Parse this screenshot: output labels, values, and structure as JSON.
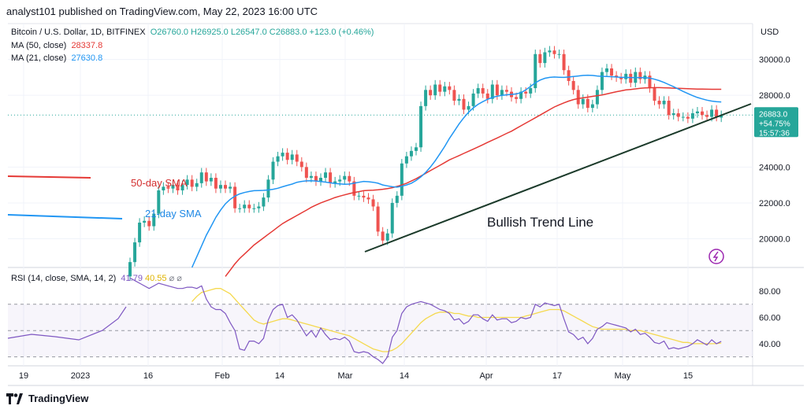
{
  "header": {
    "text": "analyst101 published on TradingView.com, May 22, 2023 16:00 UTC"
  },
  "legend": {
    "symbol": "Bitcoin / U.S. Dollar, 1D, BITFINEX",
    "ohlc": "O26760.0  H26925.0  L26547.0  C26883.0  +123.0 (+0.46%)",
    "ma50_label": "MA (50, close)",
    "ma50_value": "28337.8",
    "ma21_label": "MA (21, close)",
    "ma21_value": "27630.8"
  },
  "rsi_legend": {
    "label": "RSI (14, close, SMA, 14, 2)",
    "value1": "41.79",
    "value2": "40.55"
  },
  "footer": {
    "brand": "TradingView"
  },
  "colors": {
    "up": "#26a69a",
    "down": "#ef5350",
    "ma50": "#e53935",
    "ma21": "#2196f3",
    "rsi": "#7e57c2",
    "rsi_sma": "#f5d94e",
    "trend": "#1b3a2a",
    "price_tag": "#26a69a"
  },
  "chart_data": {
    "type": "candlestick",
    "title": "Bitcoin / U.S. Dollar, 1D, BITFINEX",
    "currency": "USD",
    "price_axis": {
      "label": "USD",
      "ticks": [
        20000,
        22000,
        24000,
        26000,
        28000,
        30000
      ],
      "tick_labels": [
        "20000.0",
        "22000.0",
        "24000.0",
        "26000.0",
        "28000.0",
        "30000.0"
      ],
      "range": [
        18400,
        32000
      ]
    },
    "time_axis": {
      "labels": [
        "19",
        "2023",
        "16",
        "Feb",
        "14",
        "Mar",
        "14",
        "Apr",
        "17",
        "May",
        "15"
      ]
    },
    "last_price": {
      "value": "26883.0",
      "change": "+54.75%",
      "countdown": "15:57:36"
    },
    "annotations": {
      "sma50": "50-day SMA",
      "sma21": "21-day SMA",
      "trend": "Bullish Trend Line"
    },
    "closes": [
      18700,
      19800,
      20900,
      21000,
      20700,
      21400,
      22700,
      22900,
      22800,
      23000,
      22700,
      23000,
      23300,
      22900,
      23100,
      23700,
      23200,
      23400,
      22800,
      23000,
      22800,
      22900,
      21700,
      21700,
      21900,
      21700,
      21700,
      21800,
      22300,
      23300,
      24300,
      24600,
      24800,
      24400,
      24700,
      24300,
      24000,
      23400,
      23500,
      23200,
      23400,
      23700,
      23100,
      23200,
      23300,
      23500,
      23200,
      22400,
      22400,
      22300,
      22200,
      21800,
      20400,
      19900,
      20300,
      22000,
      22400,
      24200,
      24600,
      24900,
      25100,
      27400,
      28300,
      28000,
      28600,
      28200,
      28500,
      28300,
      27700,
      27800,
      27200,
      27400,
      28100,
      28400,
      28100,
      27800,
      28600,
      28000,
      28300,
      28200,
      27900,
      27800,
      28200,
      28100,
      28400,
      30300,
      29800,
      30400,
      30500,
      30300,
      30300,
      29400,
      28800,
      28300,
      27500,
      27800,
      27300,
      27500,
      28300,
      29300,
      29500,
      29100,
      29000,
      28900,
      29200,
      28700,
      29300,
      28900,
      29100,
      28400,
      27700,
      27500,
      27700,
      26900,
      27000,
      26800,
      26800,
      26700,
      27000,
      27100,
      26900,
      26800,
      27200,
      26800,
      26900
    ],
    "opens": [
      17900,
      18700,
      19800,
      20900,
      21000,
      20700,
      21400,
      22700,
      22900,
      22800,
      23000,
      22700,
      23000,
      23300,
      22900,
      23100,
      23700,
      23200,
      23400,
      22800,
      23000,
      22800,
      22900,
      21700,
      21700,
      21900,
      21700,
      21700,
      21800,
      22300,
      23300,
      24300,
      24600,
      24800,
      24400,
      24700,
      24300,
      24000,
      23400,
      23500,
      23200,
      23400,
      23700,
      23100,
      23200,
      23300,
      23500,
      23200,
      22400,
      22400,
      22300,
      22200,
      21800,
      20400,
      19900,
      20300,
      22000,
      22400,
      24200,
      24600,
      24900,
      25100,
      27400,
      28300,
      28000,
      28600,
      28200,
      28500,
      28300,
      27700,
      27800,
      27200,
      27400,
      28100,
      28400,
      28100,
      27800,
      28600,
      28000,
      28300,
      28200,
      27900,
      27800,
      28200,
      28100,
      28400,
      30300,
      29800,
      30400,
      30500,
      30300,
      30300,
      29400,
      28800,
      28300,
      27500,
      27800,
      27300,
      27500,
      28300,
      29300,
      29500,
      29100,
      29000,
      28900,
      29200,
      28700,
      29300,
      28900,
      29100,
      28400,
      27700,
      27500,
      27700,
      26900,
      27000,
      26800,
      26800,
      26700,
      27000,
      27100,
      26900,
      26800,
      27200,
      26760
    ],
    "ma50": [
      null,
      null,
      null,
      null,
      null,
      null,
      null,
      null,
      null,
      null,
      null,
      null,
      null,
      null,
      null,
      null,
      null,
      null,
      null,
      null,
      17900,
      18250,
      18600,
      18900,
      19150,
      19400,
      19650,
      19850,
      20050,
      20250,
      20450,
      20650,
      20850,
      21000,
      21150,
      21300,
      21450,
      21600,
      21750,
      21880,
      22000,
      22100,
      22200,
      22300,
      22380,
      22450,
      22520,
      22580,
      22630,
      22680,
      22700,
      22710,
      22730,
      22760,
      22800,
      22850,
      22920,
      23000,
      23100,
      23220,
      23350,
      23500,
      23650,
      23800,
      23950,
      24100,
      24250,
      24400,
      24520,
      24640,
      24760,
      24880,
      25000,
      25120,
      25250,
      25380,
      25500,
      25620,
      25750,
      25880,
      26000,
      26150,
      26300,
      26450,
      26600,
      26750,
      26900,
      27050,
      27200,
      27350,
      27470,
      27580,
      27680,
      27760,
      27820,
      27860,
      27900,
      27940,
      27980,
      28020,
      28080,
      28140,
      28200,
      28250,
      28300,
      28330,
      28360,
      28390,
      28410,
      28420,
      28430,
      28430,
      28420,
      28410,
      28400,
      28390,
      28380,
      28370,
      28360,
      28350,
      28345,
      28340,
      28338,
      28338,
      28338
    ],
    "ma21": [
      null,
      null,
      null,
      null,
      null,
      null,
      null,
      null,
      null,
      null,
      null,
      null,
      null,
      18400,
      19000,
      19600,
      20200,
      20700,
      21200,
      21600,
      21950,
      22200,
      22380,
      22500,
      22580,
      22640,
      22680,
      22690,
      22700,
      22720,
      22760,
      22820,
      22900,
      22980,
      23050,
      23150,
      23200,
      23230,
      23240,
      23220,
      23190,
      23160,
      23120,
      23080,
      23060,
      23040,
      23050,
      23100,
      23150,
      23200,
      23180,
      23150,
      23100,
      23000,
      22950,
      22900,
      22880,
      22930,
      23000,
      23100,
      23250,
      23450,
      23700,
      24000,
      24350,
      24750,
      25150,
      25600,
      26000,
      26400,
      26750,
      27050,
      27300,
      27500,
      27650,
      27780,
      27880,
      27950,
      28000,
      28030,
      28050,
      28080,
      28150,
      28300,
      28500,
      28700,
      28850,
      28950,
      29000,
      29020,
      29010,
      29000,
      29020,
      29050,
      29080,
      29110,
      29120,
      29110,
      29080,
      29060,
      29050,
      29040,
      29020,
      29000,
      29000,
      28990,
      28990,
      28990,
      28980,
      28960,
      28900,
      28820,
      28720,
      28600,
      28480,
      28350,
      28220,
      28100,
      27980,
      27880,
      27800,
      27730,
      27680,
      27650,
      27631
    ],
    "rsi": [
      90,
      88,
      86,
      84,
      82,
      84,
      86,
      85,
      84,
      83,
      82,
      82,
      83,
      83,
      82,
      84,
      74,
      68,
      66,
      66,
      63,
      56,
      50,
      36,
      35,
      42,
      42,
      40,
      44,
      58,
      66,
      69,
      70,
      60,
      62,
      58,
      52,
      46,
      50,
      45,
      52,
      47,
      43,
      44,
      43,
      45,
      42,
      34,
      33,
      34,
      33,
      30,
      28,
      25,
      30,
      45,
      50,
      63,
      68,
      70,
      71,
      72,
      71,
      70,
      68,
      66,
      65,
      63,
      58,
      59,
      55,
      57,
      62,
      62,
      59,
      57,
      62,
      58,
      59,
      59,
      56,
      57,
      60,
      59,
      60,
      70,
      68,
      71,
      70,
      69,
      70,
      59,
      49,
      47,
      43,
      45,
      40,
      44,
      51,
      53,
      56,
      55,
      54,
      53,
      52,
      49,
      51,
      47,
      48,
      45,
      41,
      40,
      42,
      36,
      37,
      36,
      37,
      38,
      40,
      43,
      41,
      39,
      43,
      40,
      41.79
    ],
    "rsi_sma": [
      null,
      null,
      null,
      null,
      null,
      null,
      null,
      null,
      null,
      null,
      null,
      null,
      null,
      72,
      76,
      79,
      80,
      81,
      82,
      82,
      80,
      78,
      74,
      70,
      66,
      62,
      58,
      56,
      55,
      56,
      57,
      58,
      59,
      59,
      58,
      57,
      56,
      55,
      54,
      53,
      52,
      51,
      50,
      49,
      48,
      47,
      46,
      44,
      42,
      40,
      38,
      36,
      35,
      34,
      34,
      35,
      37,
      40,
      44,
      48,
      52,
      56,
      59,
      61,
      63,
      64,
      64,
      64,
      63,
      63,
      62,
      61,
      61,
      60,
      60,
      60,
      60,
      60,
      60,
      60,
      60,
      60,
      60,
      61,
      62,
      63,
      64,
      65,
      66,
      66,
      66,
      65,
      63,
      61,
      59,
      57,
      55,
      53,
      52,
      51,
      51,
      51,
      51,
      51,
      51,
      50,
      50,
      50,
      49,
      48,
      47,
      46,
      45,
      44,
      43,
      42,
      41,
      41,
      40,
      40,
      40,
      40,
      40,
      40,
      40.55
    ],
    "rsi_axis": {
      "ticks": [
        40,
        60,
        80
      ],
      "tick_labels": [
        "40.00",
        "60.00",
        "80.00"
      ],
      "bands": [
        70,
        50,
        30
      ]
    }
  }
}
